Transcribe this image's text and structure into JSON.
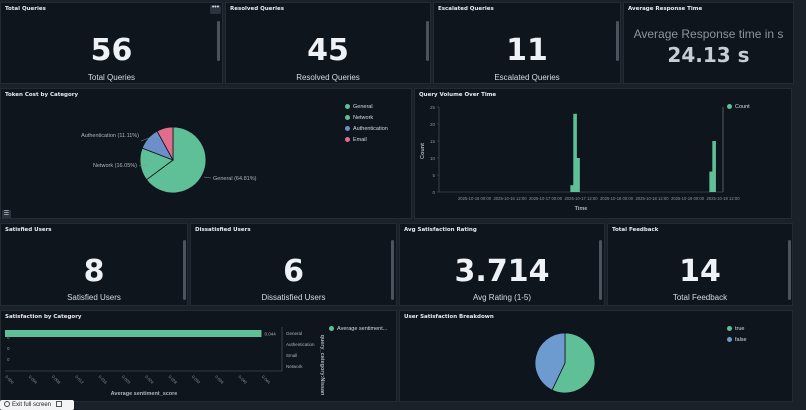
{
  "kpis_top": {
    "total_queries": {
      "title": "Total Queries",
      "value": "56",
      "label": "Total Queries"
    },
    "resolved_queries": {
      "title": "Resolved Queries",
      "value": "45",
      "label": "Resolved Queries"
    },
    "escalated_queries": {
      "title": "Escalated Queries",
      "value": "11",
      "label": "Escalated Queries"
    },
    "avg_response": {
      "title": "Average Response Time",
      "subtitle": "Average Response time in s",
      "value": "24.13 s"
    }
  },
  "kpis_bottom": {
    "satisfied": {
      "title": "Satisfied Users",
      "value": "8",
      "label": "Satisfied Users"
    },
    "dissatisfied": {
      "title": "Dissatisfied Users",
      "value": "6",
      "label": "Dissatisfied Users"
    },
    "avg_satisfaction": {
      "title": "Avg Satisfaction Rating",
      "value": "3.714",
      "label": "Avg Rating (1-5)"
    },
    "total_feedback": {
      "title": "Total Feedback",
      "value": "14",
      "label": "Total Feedback"
    }
  },
  "menu_icon": "ellipsis-icon",
  "table_icon": "list-icon",
  "exit_fullscreen": {
    "label": "Exit full screen",
    "icon": "fullscreen-exit-icon"
  },
  "colors": {
    "general": "#5fbf97",
    "network": "#5fbf97",
    "authentication": "#6d8fc9",
    "email": "#e06d8b",
    "true": "#5fbf97",
    "false": "#6d9bcf"
  },
  "token_cost": {
    "title": "Token Cost by Category",
    "legend": [
      "General",
      "Network",
      "Authentication",
      "Email"
    ],
    "slice_labels": {
      "general": "General (64.81%)",
      "network": "Network (16.05%)",
      "authentication": "Authentication (11.11%)"
    }
  },
  "query_volume": {
    "title": "Query Volume Over Time",
    "legend": [
      "Count"
    ],
    "xlabel": "Time",
    "ylabel": "Count",
    "yticks": [
      "0",
      "5",
      "10",
      "15",
      "20",
      "25"
    ],
    "xticks": [
      "2025-10-16 00:00",
      "2025-10-16 12:00",
      "2025-10-17 00:00",
      "2025-10-17 12:00",
      "2025-10-18 00:00",
      "2025-10-18 12:00",
      "2025-10-19 00:00",
      "2025-10-19 12:00"
    ]
  },
  "satisfaction_by_category": {
    "title": "Satisfaction by Category",
    "bar_value_label": "0.044",
    "categories": [
      "General",
      "Authentication",
      "Small",
      "Network"
    ],
    "legend": [
      "Average sentiment..."
    ],
    "xlabel": "Average sentiment_score",
    "ylabel": "query_category:Nissan",
    "yticks": [
      "0",
      "0",
      "0"
    ]
  },
  "user_satisfaction": {
    "title": "User Satisfaction Breakdown",
    "legend": [
      "true",
      "false"
    ]
  },
  "chart_data": [
    {
      "type": "pie",
      "title": "Token Cost by Category",
      "categories": [
        "General",
        "Network",
        "Authentication",
        "Email"
      ],
      "values": [
        64.81,
        16.05,
        11.11,
        8.03
      ]
    },
    {
      "type": "bar",
      "title": "Query Volume Over Time",
      "xlabel": "Time",
      "ylabel": "Count",
      "ylim": [
        0,
        25
      ],
      "x": [
        "2025-10-17 09:00",
        "2025-10-17 10:00",
        "2025-10-17 11:00",
        "2025-10-19 08:00",
        "2025-10-19 09:00"
      ],
      "values": [
        2,
        23,
        10,
        6,
        15
      ]
    },
    {
      "type": "bar",
      "title": "Satisfaction by Category",
      "categories": [
        "General",
        "Authentication",
        "Small",
        "Network"
      ],
      "values": [
        0.044,
        0,
        0,
        0
      ],
      "xlabel": "Average sentiment_score"
    },
    {
      "type": "pie",
      "title": "User Satisfaction Breakdown",
      "categories": [
        "true",
        "false"
      ],
      "values": [
        57.1,
        42.9
      ]
    }
  ]
}
